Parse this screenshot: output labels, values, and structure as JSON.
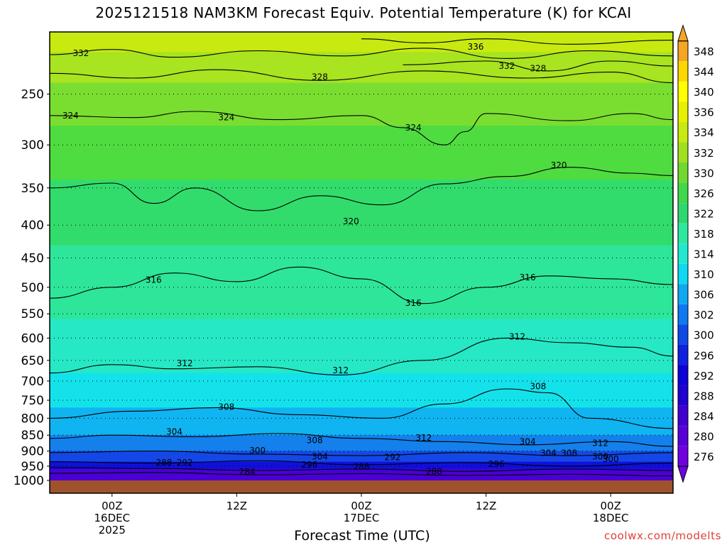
{
  "title": "2025121518 NAM3KM Forecast Equiv. Potential Temperature (K) for KCAI",
  "xlabel": "Forecast Time (UTC)",
  "credit": "coolwx.com/modelts",
  "colors": {
    "background": "#ffffff",
    "ground": "#a0522d",
    "grid": "#000000"
  },
  "chart_data": {
    "type": "heatmap",
    "title": "2025121518 NAM3KM Forecast Equiv. Potential Temperature (K) for KCAI",
    "xlabel": "Forecast Time (UTC)",
    "ylabel": "",
    "y_scale": "log-pressure",
    "y_axis_reversed": true,
    "y_ticks": [
      250,
      300,
      350,
      400,
      450,
      500,
      550,
      600,
      650,
      700,
      750,
      800,
      850,
      900,
      950,
      1000
    ],
    "x_ticks": [
      {
        "hour": 6,
        "label": [
          "00Z",
          "16DEC",
          "2025"
        ]
      },
      {
        "hour": 18,
        "label": [
          "12Z"
        ]
      },
      {
        "hour": 30,
        "label": [
          "00Z",
          "17DEC"
        ]
      },
      {
        "hour": 42,
        "label": [
          "12Z"
        ]
      },
      {
        "hour": 54,
        "label": [
          "00Z",
          "18DEC"
        ]
      }
    ],
    "x_range_hours": [
      0,
      60
    ],
    "colorbar": {
      "levels": [
        348,
        344,
        340,
        336,
        334,
        332,
        330,
        326,
        322,
        318,
        314,
        310,
        306,
        302,
        300,
        296,
        292,
        288,
        284,
        280,
        276
      ],
      "colors": [
        "#f5a623",
        "#ffd700",
        "#ffff00",
        "#e6f000",
        "#c8ea10",
        "#a0e020",
        "#70d830",
        "#3fd84a",
        "#2ed870",
        "#2ee8a0",
        "#22e8d0",
        "#10d8f0",
        "#10a8f0",
        "#1078f0",
        "#1048e8",
        "#1020e0",
        "#1000d8",
        "#2000d0",
        "#4000d0",
        "#5800d8",
        "#7000e0"
      ]
    },
    "bands": [
      {
        "p_top": 200,
        "p_bottom": 215,
        "color": "#c8ea10"
      },
      {
        "p_top": 215,
        "p_bottom": 240,
        "color": "#a8e420"
      },
      {
        "p_top": 240,
        "p_bottom": 280,
        "color": "#7ade30"
      },
      {
        "p_top": 280,
        "p_bottom": 340,
        "color": "#4fdc40"
      },
      {
        "p_top": 340,
        "p_bottom": 430,
        "color": "#32dc6c"
      },
      {
        "p_top": 430,
        "p_bottom": 560,
        "color": "#2ee69a"
      },
      {
        "p_top": 560,
        "p_bottom": 680,
        "color": "#26e8c4"
      },
      {
        "p_top": 680,
        "p_bottom": 770,
        "color": "#14e2ea"
      },
      {
        "p_top": 770,
        "p_bottom": 850,
        "color": "#10b4f0"
      },
      {
        "p_top": 850,
        "p_bottom": 900,
        "color": "#1480ec"
      },
      {
        "p_top": 900,
        "p_bottom": 935,
        "color": "#1448e6"
      },
      {
        "p_top": 935,
        "p_bottom": 960,
        "color": "#1010dc"
      },
      {
        "p_top": 960,
        "p_bottom": 1000,
        "color": "#4a00d4"
      }
    ],
    "contours": [
      {
        "value": 332,
        "label": "332",
        "points": [
          [
            0,
            217
          ],
          [
            6,
            213
          ],
          [
            12,
            219
          ],
          [
            20,
            214
          ],
          [
            28,
            218
          ],
          [
            36,
            212
          ],
          [
            44,
            220
          ],
          [
            52,
            214
          ],
          [
            60,
            218
          ]
        ],
        "label_at": [
          [
            3,
            216
          ]
        ]
      },
      {
        "value": 336,
        "label": "336",
        "points": [
          [
            30,
            205
          ],
          [
            36,
            208
          ],
          [
            42,
            205
          ],
          [
            50,
            209
          ],
          [
            60,
            206
          ]
        ],
        "label_at": [
          [
            41,
            211
          ]
        ]
      },
      {
        "value": 332,
        "label": "332",
        "points": [
          [
            34,
            225
          ],
          [
            42,
            222
          ],
          [
            48,
            230
          ],
          [
            54,
            222
          ],
          [
            60,
            226
          ]
        ],
        "label_at": [
          [
            44,
            226
          ]
        ]
      },
      {
        "value": 328,
        "label": "328",
        "points": [
          [
            0,
            232
          ],
          [
            8,
            236
          ],
          [
            16,
            229
          ],
          [
            26,
            238
          ],
          [
            36,
            230
          ],
          [
            46,
            236
          ],
          [
            54,
            231
          ],
          [
            60,
            240
          ]
        ],
        "label_at": [
          [
            26,
            235
          ],
          [
            47,
            228
          ]
        ]
      },
      {
        "value": 324,
        "label": "324",
        "points": [
          [
            0,
            270
          ],
          [
            8,
            272
          ],
          [
            14,
            266
          ],
          [
            22,
            274
          ],
          [
            30,
            270
          ],
          [
            34,
            282
          ],
          [
            38,
            300
          ],
          [
            40,
            286
          ],
          [
            42,
            268
          ],
          [
            50,
            275
          ],
          [
            56,
            268
          ],
          [
            60,
            274
          ]
        ],
        "label_at": [
          [
            2,
            270
          ],
          [
            17,
            272
          ],
          [
            35,
            282
          ]
        ]
      },
      {
        "value": 320,
        "label": "320",
        "points": [
          [
            0,
            350
          ],
          [
            6,
            344
          ],
          [
            10,
            370
          ],
          [
            14,
            350
          ],
          [
            20,
            380
          ],
          [
            26,
            360
          ],
          [
            32,
            372
          ],
          [
            38,
            345
          ],
          [
            44,
            336
          ],
          [
            50,
            325
          ],
          [
            56,
            332
          ],
          [
            60,
            335
          ]
        ],
        "label_at": [
          [
            29,
            395
          ],
          [
            49,
            323
          ]
        ]
      },
      {
        "value": 316,
        "label": "316",
        "points": [
          [
            0,
            520
          ],
          [
            6,
            500
          ],
          [
            12,
            475
          ],
          [
            18,
            490
          ],
          [
            24,
            465
          ],
          [
            30,
            485
          ],
          [
            36,
            530
          ],
          [
            42,
            500
          ],
          [
            48,
            480
          ],
          [
            54,
            485
          ],
          [
            60,
            495
          ]
        ],
        "label_at": [
          [
            10,
            487
          ],
          [
            35,
            529
          ],
          [
            46,
            483
          ]
        ]
      },
      {
        "value": 312,
        "label": "312",
        "points": [
          [
            0,
            680
          ],
          [
            6,
            660
          ],
          [
            12,
            670
          ],
          [
            20,
            665
          ],
          [
            28,
            685
          ],
          [
            36,
            650
          ],
          [
            44,
            600
          ],
          [
            50,
            610
          ],
          [
            56,
            620
          ],
          [
            60,
            640
          ]
        ],
        "label_at": [
          [
            13,
            657
          ],
          [
            28,
            674
          ],
          [
            45,
            597
          ]
        ]
      },
      {
        "value": 308,
        "label": "308",
        "points": [
          [
            0,
            800
          ],
          [
            8,
            780
          ],
          [
            16,
            770
          ],
          [
            24,
            790
          ],
          [
            32,
            800
          ],
          [
            38,
            760
          ],
          [
            44,
            720
          ],
          [
            48,
            730
          ],
          [
            52,
            800
          ],
          [
            60,
            830
          ]
        ],
        "label_at": [
          [
            17,
            768
          ],
          [
            47,
            714
          ]
        ]
      },
      {
        "value": 304,
        "label": "304",
        "points": [
          [
            0,
            860
          ],
          [
            6,
            850
          ],
          [
            14,
            855
          ],
          [
            22,
            845
          ],
          [
            30,
            860
          ],
          [
            38,
            870
          ],
          [
            46,
            880
          ],
          [
            54,
            870
          ],
          [
            60,
            885
          ]
        ],
        "label_at": [
          [
            12,
            840
          ],
          [
            46,
            870
          ]
        ]
      },
      {
        "value": 300,
        "label": "300",
        "points": [
          [
            0,
            905
          ],
          [
            10,
            900
          ],
          [
            20,
            910
          ],
          [
            30,
            915
          ],
          [
            40,
            905
          ],
          [
            50,
            915
          ],
          [
            60,
            905
          ]
        ],
        "label_at": [
          [
            20,
            898
          ],
          [
            53,
            918
          ]
        ]
      },
      {
        "value": 292,
        "label": "292",
        "points": [
          [
            0,
            935
          ],
          [
            10,
            940
          ],
          [
            20,
            932
          ],
          [
            30,
            945
          ],
          [
            40,
            938
          ],
          [
            50,
            950
          ],
          [
            60,
            940
          ]
        ],
        "label_at": [
          [
            13,
            938
          ],
          [
            33,
            920
          ]
        ]
      },
      {
        "value": 288,
        "label": "288",
        "points": [
          [
            0,
            955
          ],
          [
            10,
            958
          ],
          [
            20,
            965
          ],
          [
            30,
            960
          ],
          [
            40,
            968
          ],
          [
            50,
            960
          ],
          [
            60,
            965
          ]
        ],
        "label_at": [
          [
            11,
            938
          ],
          [
            37,
            969
          ]
        ]
      },
      {
        "value": 284,
        "label": "284",
        "points": [
          [
            0,
            975
          ],
          [
            10,
            972
          ],
          [
            20,
            980
          ],
          [
            30,
            976
          ],
          [
            40,
            982
          ],
          [
            50,
            978
          ],
          [
            60,
            984
          ]
        ],
        "label_at": [
          [
            19,
            970
          ]
        ]
      }
    ],
    "extra_labels": [
      {
        "text": "308",
        "hour": 25.5,
        "p": 866
      },
      {
        "text": "312",
        "hour": 36,
        "p": 858
      },
      {
        "text": "296",
        "hour": 25,
        "p": 945
      },
      {
        "text": "304",
        "hour": 26,
        "p": 918
      },
      {
        "text": "288",
        "hour": 30,
        "p": 953
      },
      {
        "text": "296",
        "hour": 43,
        "p": 943
      },
      {
        "text": "304",
        "hour": 48,
        "p": 907
      },
      {
        "text": "308",
        "hour": 50,
        "p": 907
      },
      {
        "text": "312",
        "hour": 53,
        "p": 875
      },
      {
        "text": "300",
        "hour": 54,
        "p": 927
      }
    ]
  }
}
